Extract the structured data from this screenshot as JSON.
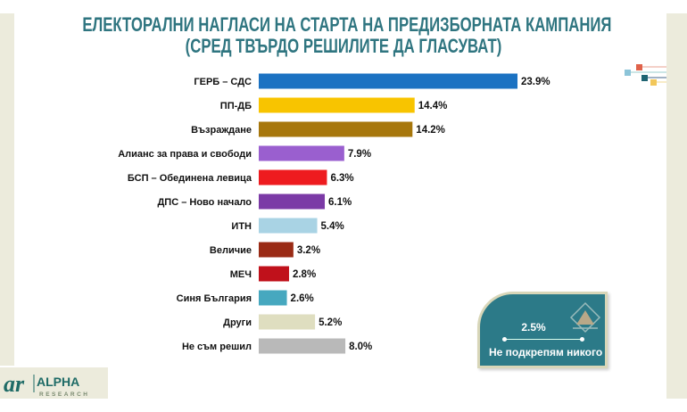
{
  "chart_data": {
    "type": "bar",
    "orientation": "horizontal",
    "title": "ЕЛЕКТОРАЛНИ НАГЛАСИ НА СТАРТА НА ПРЕДИЗБОРНАТА КАМПАНИЯ",
    "subtitle": "(СРЕД ТВЪРДО РЕШИЛИТЕ ДА ГЛАСУВАТ)",
    "categories": [
      "ГЕРБ – СДС",
      "ПП-ДБ",
      "Възраждане",
      "Алианс за права и свободи",
      "БСП – Обединена левица",
      "ДПС – Ново начало",
      "ИТН",
      "Величие",
      "МЕЧ",
      "Синя България",
      "Други",
      "Не съм решил"
    ],
    "values": [
      23.9,
      14.4,
      14.2,
      7.9,
      6.3,
      6.1,
      5.4,
      3.2,
      2.8,
      2.6,
      5.2,
      8.0
    ],
    "value_labels": [
      "23.9%",
      "14.4%",
      "14.2%",
      "7.9%",
      "6.3%",
      "6.1%",
      "5.4%",
      "3.2%",
      "2.8%",
      "2.6%",
      "5.2%",
      "8.0%"
    ],
    "colors": [
      "#1b72c2",
      "#f8c400",
      "#a7770c",
      "#9a5fcf",
      "#ee1b1f",
      "#7b3aa6",
      "#a9d3e4",
      "#9a2b15",
      "#c0111b",
      "#46a8bf",
      "#dfdec0",
      "#b9b9b9"
    ],
    "grid": false,
    "xlim": [
      0,
      25
    ]
  },
  "callout": {
    "value": "2.5%",
    "label": "Не подкрепям никого",
    "color": "#2c7a88"
  },
  "logo": {
    "text": "ALPHA RESEARCH"
  }
}
